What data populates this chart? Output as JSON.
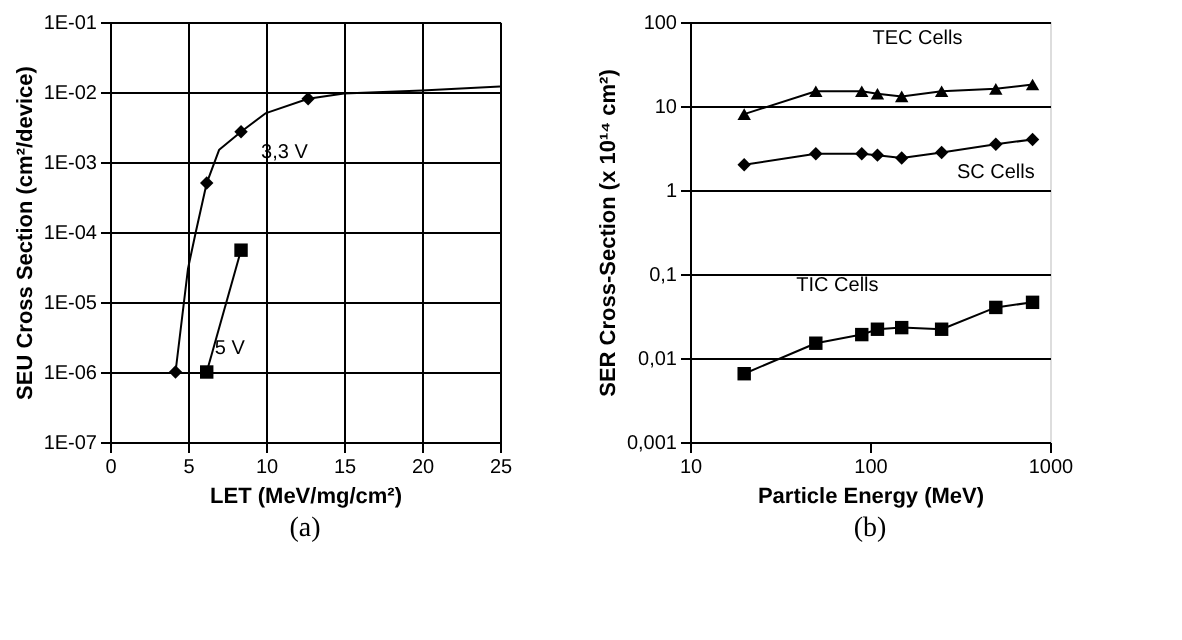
{
  "chart_data": [
    {
      "type": "line",
      "xlabel": "LET (MeV/mg/cm²)",
      "ylabel": "SEU Cross Section (cm²/device)",
      "log": "y",
      "grid": true,
      "xlim": [
        0,
        25
      ],
      "xticks": [
        0,
        5,
        10,
        15,
        20,
        25
      ],
      "ylim": [
        1e-07,
        0.1
      ],
      "yticks": [
        {
          "value": 1e-07,
          "label": "1E-07"
        },
        {
          "value": 1e-06,
          "label": "1E-06"
        },
        {
          "value": 1e-05,
          "label": "1E-05"
        },
        {
          "value": 0.0001,
          "label": "1E-04"
        },
        {
          "value": 0.001,
          "label": "1E-03"
        },
        {
          "value": 0.01,
          "label": "1E-02"
        },
        {
          "value": 0.1,
          "label": "1E-01"
        }
      ],
      "series": [
        {
          "marker": "none",
          "color": "#000000",
          "x": [
            4.2,
            5,
            5.5,
            6.2,
            7,
            8.4,
            10,
            12.7,
            15,
            20,
            25
          ],
          "values": [
            1e-06,
            3e-05,
            0.0001,
            0.0005,
            0.0015,
            0.0027,
            0.005,
            0.008,
            0.0095,
            0.0105,
            0.012
          ]
        },
        {
          "type": "scatter",
          "name": "3,3 V",
          "marker": "diamond",
          "color": "#000000",
          "x": [
            4.2,
            6.2,
            8.4,
            12.7
          ],
          "values": [
            1e-06,
            0.0005,
            0.0027,
            0.008
          ]
        },
        {
          "name": "5 V",
          "marker": "square",
          "color": "#000000",
          "x": [
            6.2,
            8.4
          ],
          "values": [
            1e-06,
            5.5e-05
          ]
        }
      ],
      "annotations": [
        "(a)"
      ]
    },
    {
      "type": "line",
      "xlabel": "Particle Energy (MeV)",
      "ylabel": "SER Cross-Section (x 10¹⁴ cm²)",
      "log": "xy",
      "grid": "y",
      "xlim": [
        10,
        1000
      ],
      "xticks": [
        10,
        100,
        1000
      ],
      "ylim": [
        0.001,
        100
      ],
      "yticks": [
        {
          "value": 0.001,
          "label": "0,001"
        },
        {
          "value": 0.01,
          "label": "0,01"
        },
        {
          "value": 0.1,
          "label": "0,1"
        },
        1,
        10,
        100
      ],
      "x": [
        20,
        50,
        90,
        110,
        150,
        250,
        500,
        800
      ],
      "series": [
        {
          "name": "TEC Cells",
          "marker": "triangle",
          "color": "#000000",
          "values": [
            8,
            15,
            15,
            14,
            13,
            15,
            16,
            18
          ]
        },
        {
          "name": "SC Cells",
          "marker": "diamond",
          "color": "#000000",
          "values": [
            2,
            2.7,
            2.7,
            2.6,
            2.4,
            2.8,
            3.5,
            4
          ]
        },
        {
          "name": "TIC Cells",
          "marker": "square",
          "color": "#000000",
          "values": [
            0.0065,
            0.015,
            0.019,
            0.022,
            0.023,
            0.022,
            0.04,
            0.046
          ]
        }
      ],
      "annotations": [
        "(b)"
      ]
    }
  ]
}
